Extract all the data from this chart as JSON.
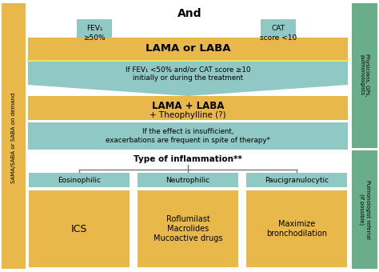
{
  "title": "And",
  "bg_color": "#ffffff",
  "gold_color": "#E8B84B",
  "teal_color": "#8FC8C4",
  "green_color": "#6AAD8A",
  "left_label": "SAMA/SABA or SABA on demand",
  "right_top_label": "Physicians, GPs,\npulmonologists",
  "right_bottom_label": "Pulmonologist referral\n(if possible)",
  "arrow_left_text1": "FEV₁",
  "arrow_left_text2": "≥50%",
  "arrow_right_text1": "CAT",
  "arrow_right_text2": "score <10",
  "box1_text": "LAMA or LABA",
  "box2_text": "If FEV₁ <50% and/or CAT score ≥10\ninitially or during the treatment",
  "box3_text_bold": "LAMA + LABA",
  "box3_text_normal": "+ Theophylline (?)",
  "box4_text": "If the effect is insufficient,\nexacerbations are frequent in spite of therapy*",
  "inflammation_label": "Type of inflammation**",
  "sub1_label": "Eosinophilic",
  "sub2_label": "Neutrophilic",
  "sub3_label": "Paucigranulocytic",
  "drug1": "ICS",
  "drug2": "Roflumilast\nMacrolides\nMucoactive drugs",
  "drug3": "Maximize\nbronchodilation"
}
